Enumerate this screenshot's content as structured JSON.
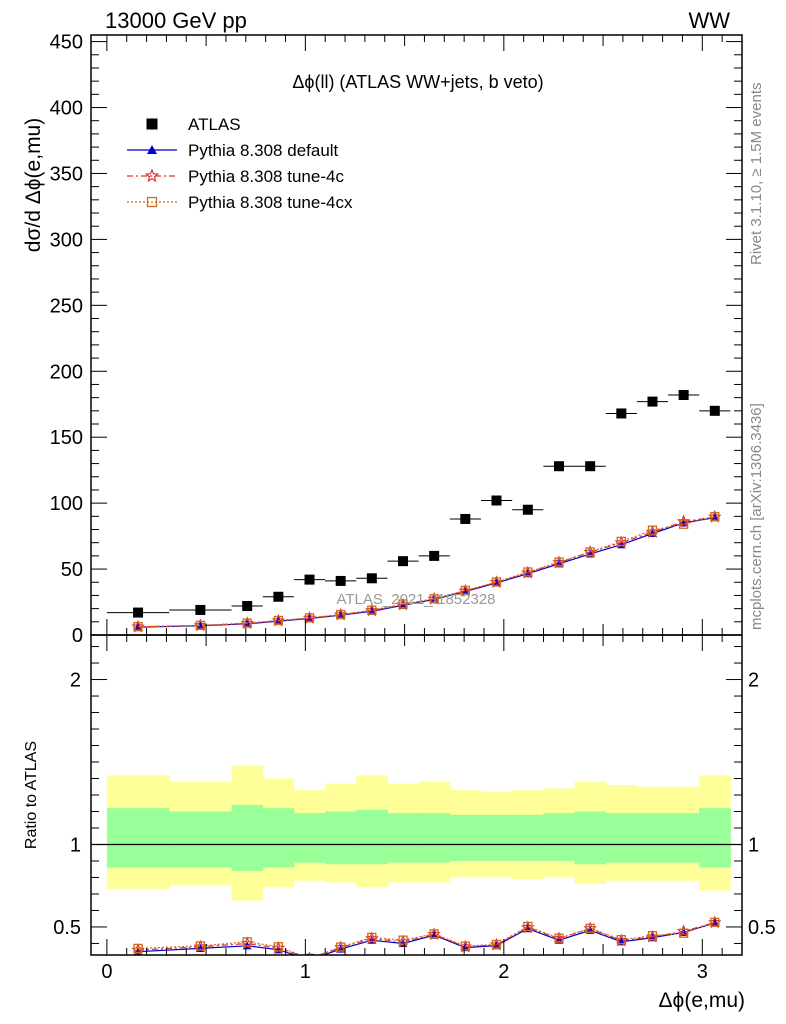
{
  "header": {
    "left": "13000 GeV pp",
    "right": "WW"
  },
  "side_labels": {
    "top": "Rivet 3.1.10, ≥ 1.5M events",
    "bottom": "mcplots.cern.ch [arXiv:1306.3436]"
  },
  "chart_data": [
    {
      "type": "scatter",
      "title": "Δϕ(ll) (ATLAS WW+jets, b veto)",
      "ylabel": "dσ/d Δϕ(e,mu)",
      "xlabel": "",
      "watermark": "ATLAS_2021_I1852328",
      "xlim": [
        -0.08,
        3.2
      ],
      "ylim": [
        0,
        455
      ],
      "y_ticks": [
        0,
        50,
        100,
        150,
        200,
        250,
        300,
        350,
        400,
        450
      ],
      "x_ticks": [
        0,
        1,
        2,
        3
      ],
      "bin_edges": [
        0.0,
        0.3142,
        0.6283,
        0.7854,
        0.9425,
        1.0996,
        1.2566,
        1.4137,
        1.5708,
        1.7279,
        1.885,
        2.042,
        2.1991,
        2.3562,
        2.5133,
        2.6704,
        2.8274,
        2.9845,
        3.1416
      ],
      "x": [
        0.157,
        0.471,
        0.707,
        0.864,
        1.021,
        1.178,
        1.335,
        1.492,
        1.649,
        1.806,
        1.963,
        2.121,
        2.278,
        2.435,
        2.592,
        2.749,
        2.906,
        3.063
      ],
      "series": [
        {
          "name": "ATLAS",
          "color": "#000000",
          "marker": "square",
          "values": [
            17,
            19,
            22,
            29,
            42,
            41,
            43,
            56,
            60,
            88,
            102,
            95,
            128,
            128,
            168,
            177,
            182,
            170
          ]
        },
        {
          "name": "Pythia 8.308 default",
          "color": "#0000cc",
          "marker": "triangle",
          "values": [
            6.0,
            7.0,
            8.5,
            10.5,
            12.5,
            15.0,
            18.0,
            22.5,
            27.0,
            33.0,
            39.5,
            46.5,
            54.0,
            61.5,
            68.5,
            77.0,
            85.0,
            89.0
          ]
        },
        {
          "name": "Pythia 8.308 tune-4c",
          "color": "#e03030",
          "marker": "star",
          "values": [
            6.2,
            7.2,
            8.8,
            10.8,
            12.8,
            15.4,
            18.5,
            23.0,
            27.3,
            33.4,
            40.0,
            47.2,
            55.0,
            62.8,
            70.0,
            78.0,
            86.0,
            89.5
          ]
        },
        {
          "name": "Pythia 8.308 tune-4cx",
          "color": "#d2691e",
          "marker": "opensquare",
          "values": [
            6.3,
            7.3,
            9.0,
            11.0,
            13.0,
            15.5,
            18.8,
            23.5,
            27.5,
            33.8,
            40.2,
            47.8,
            55.3,
            63.0,
            71.0,
            79.5,
            84.0,
            89.8
          ]
        }
      ]
    },
    {
      "type": "line",
      "ylabel": "Ratio to ATLAS",
      "xlabel": "Δϕ(e,mu)",
      "xlim": [
        -0.08,
        3.2
      ],
      "ylim": [
        0.33,
        2.27
      ],
      "y_ticks": [
        0.5,
        1,
        2
      ],
      "x_ticks": [
        0,
        1,
        2,
        3
      ],
      "band_inner": {
        "color": "#99ff99",
        "lo": [
          0.86,
          0.86,
          0.84,
          0.86,
          0.89,
          0.88,
          0.88,
          0.89,
          0.89,
          0.9,
          0.9,
          0.9,
          0.9,
          0.88,
          0.89,
          0.89,
          0.89,
          0.86
        ],
        "hi": [
          1.22,
          1.2,
          1.24,
          1.22,
          1.19,
          1.2,
          1.21,
          1.19,
          1.19,
          1.18,
          1.18,
          1.18,
          1.19,
          1.2,
          1.19,
          1.19,
          1.19,
          1.22
        ]
      },
      "band_outer": {
        "color": "#ffff99",
        "lo": [
          0.73,
          0.75,
          0.66,
          0.74,
          0.78,
          0.77,
          0.74,
          0.77,
          0.77,
          0.8,
          0.8,
          0.79,
          0.8,
          0.76,
          0.78,
          0.78,
          0.78,
          0.72
        ],
        "hi": [
          1.42,
          1.38,
          1.48,
          1.4,
          1.33,
          1.37,
          1.42,
          1.37,
          1.38,
          1.33,
          1.32,
          1.33,
          1.34,
          1.38,
          1.36,
          1.35,
          1.35,
          1.42
        ]
      },
      "series": [
        {
          "name": "Pythia 8.308 default",
          "color": "#0000cc",
          "marker": "triangle",
          "values": [
            0.35,
            0.37,
            0.386,
            0.362,
            0.3,
            0.366,
            0.42,
            0.4,
            0.45,
            0.375,
            0.387,
            0.49,
            0.42,
            0.48,
            0.41,
            0.435,
            0.467,
            0.524
          ]
        },
        {
          "name": "Pythia 8.308 tune-4c",
          "color": "#e03030",
          "marker": "star",
          "values": [
            0.36,
            0.38,
            0.4,
            0.372,
            0.31,
            0.375,
            0.43,
            0.41,
            0.455,
            0.38,
            0.392,
            0.497,
            0.43,
            0.49,
            0.417,
            0.44,
            0.473,
            0.527
          ]
        },
        {
          "name": "Pythia 8.308 tune-4cx",
          "color": "#d2691e",
          "marker": "opensquare",
          "values": [
            0.37,
            0.385,
            0.41,
            0.38,
            0.31,
            0.378,
            0.437,
            0.42,
            0.458,
            0.384,
            0.394,
            0.503,
            0.432,
            0.492,
            0.423,
            0.447,
            0.462,
            0.528
          ]
        }
      ]
    }
  ]
}
